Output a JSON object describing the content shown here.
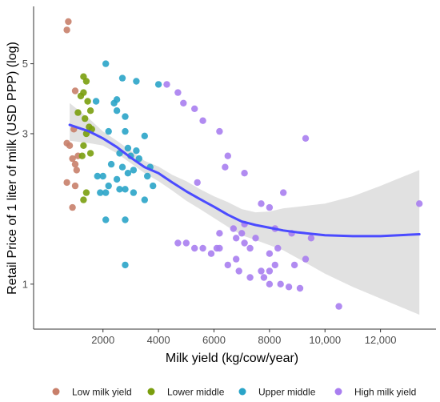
{
  "chart_data": {
    "type": "scatter",
    "xlabel": "Milk yield (kg/cow/year)",
    "ylabel": "Retail Price of 1 liter of milk (USD PPP) (log)",
    "y_scale": "log",
    "xlim": [
      -500,
      14000
    ],
    "ylim": [
      0.72,
      7.6
    ],
    "x_ticks": [
      2000,
      4000,
      6000,
      8000,
      10000,
      12000
    ],
    "x_tick_labels": [
      "2000",
      "4000",
      "6000",
      "8000",
      "10,000",
      "12,000"
    ],
    "y_ticks": [
      1,
      3,
      5
    ],
    "y_tick_labels": [
      "1",
      "3",
      "5"
    ],
    "grid": false,
    "legend_position": "bottom",
    "series": [
      {
        "name": "Low milk yield",
        "color": "#c87f6a",
        "points": [
          [
            700,
            6.4
          ],
          [
            750,
            6.8
          ],
          [
            700,
            2.8
          ],
          [
            800,
            2.75
          ],
          [
            900,
            2.5
          ],
          [
            1000,
            2.4
          ],
          [
            1100,
            2.55
          ],
          [
            1050,
            2.3
          ],
          [
            700,
            2.1
          ],
          [
            1000,
            2.05
          ],
          [
            900,
            1.75
          ],
          [
            950,
            3.1
          ],
          [
            1000,
            4.1
          ]
        ]
      },
      {
        "name": "Lower middle",
        "color": "#7a9e0e",
        "points": [
          [
            1300,
            4.55
          ],
          [
            1400,
            4.4
          ],
          [
            1300,
            4.05
          ],
          [
            1200,
            3.95
          ],
          [
            1450,
            3.8
          ],
          [
            1350,
            3.35
          ],
          [
            1550,
            3.55
          ],
          [
            1100,
            3.5
          ],
          [
            1500,
            3.15
          ],
          [
            1400,
            3.0
          ],
          [
            1600,
            3.1
          ],
          [
            1300,
            2.75
          ],
          [
            1550,
            2.6
          ],
          [
            1250,
            2.55
          ],
          [
            1400,
            1.95
          ],
          [
            1300,
            1.85
          ]
        ]
      },
      {
        "name": "Upper middle",
        "color": "#2aa4c8",
        "points": [
          [
            2100,
            5.0
          ],
          [
            2700,
            4.5
          ],
          [
            3200,
            4.4
          ],
          [
            2500,
            3.85
          ],
          [
            1750,
            3.8
          ],
          [
            2400,
            3.75
          ],
          [
            2500,
            3.55
          ],
          [
            2800,
            3.4
          ],
          [
            2200,
            3.05
          ],
          [
            2800,
            3.05
          ],
          [
            3500,
            2.95
          ],
          [
            2900,
            2.7
          ],
          [
            3200,
            2.65
          ],
          [
            2600,
            2.6
          ],
          [
            3000,
            2.55
          ],
          [
            3300,
            2.5
          ],
          [
            2300,
            2.4
          ],
          [
            2700,
            2.35
          ],
          [
            3100,
            2.3
          ],
          [
            3700,
            2.35
          ],
          [
            2000,
            2.2
          ],
          [
            2500,
            2.15
          ],
          [
            2900,
            2.25
          ],
          [
            3600,
            2.2
          ],
          [
            1800,
            2.2
          ],
          [
            2200,
            2.05
          ],
          [
            2600,
            2.0
          ],
          [
            3100,
            1.95
          ],
          [
            3800,
            2.05
          ],
          [
            1900,
            1.95
          ],
          [
            2100,
            1.95
          ],
          [
            2800,
            2.0
          ],
          [
            3500,
            1.85
          ],
          [
            2100,
            1.6
          ],
          [
            2800,
            1.6
          ],
          [
            2800,
            1.15
          ],
          [
            4000,
            4.3
          ]
        ]
      },
      {
        "name": "High milk yield",
        "color": "#a97ef0",
        "points": [
          [
            4300,
            4.3
          ],
          [
            4700,
            4.05
          ],
          [
            4900,
            3.75
          ],
          [
            5300,
            3.6
          ],
          [
            5600,
            3.3
          ],
          [
            6200,
            3.05
          ],
          [
            6400,
            2.35
          ],
          [
            6500,
            2.55
          ],
          [
            7100,
            2.25
          ],
          [
            5400,
            2.1
          ],
          [
            7700,
            1.8
          ],
          [
            8500,
            1.95
          ],
          [
            6200,
            1.45
          ],
          [
            5300,
            1.3
          ],
          [
            4700,
            1.35
          ],
          [
            5000,
            1.35
          ],
          [
            5600,
            1.3
          ],
          [
            6800,
            1.4
          ],
          [
            7000,
            1.45
          ],
          [
            7500,
            1.4
          ],
          [
            7100,
            1.35
          ],
          [
            6100,
            1.3
          ],
          [
            7300,
            1.3
          ],
          [
            8000,
            1.25
          ],
          [
            8300,
            1.3
          ],
          [
            7700,
            1.1
          ],
          [
            8200,
            1.5
          ],
          [
            8800,
            1.45
          ],
          [
            9500,
            1.4
          ],
          [
            6700,
            1.5
          ],
          [
            7100,
            1.55
          ],
          [
            6200,
            1.3
          ],
          [
            5900,
            1.25
          ],
          [
            6800,
            1.2
          ],
          [
            6500,
            1.15
          ],
          [
            6900,
            1.1
          ],
          [
            7300,
            1.05
          ],
          [
            7800,
            1.05
          ],
          [
            8000,
            1.1
          ],
          [
            8200,
            1.15
          ],
          [
            8900,
            1.15
          ],
          [
            9300,
            1.2
          ],
          [
            8000,
            1.0
          ],
          [
            8400,
            1.0
          ],
          [
            8700,
            0.98
          ],
          [
            9100,
            0.97
          ],
          [
            10500,
            0.85
          ],
          [
            8000,
            1.75
          ],
          [
            13400,
            1.8
          ],
          [
            9300,
            2.9
          ]
        ]
      }
    ],
    "trend": {
      "method": "loess",
      "color": "#4b4bff",
      "band_color": "#d9d9d9",
      "points": [
        [
          800,
          3.2
        ],
        [
          1500,
          3.05
        ],
        [
          2000,
          2.9
        ],
        [
          2500,
          2.72
        ],
        [
          3000,
          2.52
        ],
        [
          3500,
          2.35
        ],
        [
          4000,
          2.25
        ],
        [
          4500,
          2.1
        ],
        [
          5000,
          1.97
        ],
        [
          5500,
          1.86
        ],
        [
          6000,
          1.76
        ],
        [
          6500,
          1.66
        ],
        [
          7000,
          1.58
        ],
        [
          7500,
          1.54
        ],
        [
          8000,
          1.51
        ],
        [
          8500,
          1.48
        ],
        [
          9000,
          1.46
        ],
        [
          10000,
          1.43
        ],
        [
          11000,
          1.42
        ],
        [
          12000,
          1.42
        ],
        [
          13400,
          1.44
        ]
      ],
      "lower": [
        [
          800,
          2.85
        ],
        [
          1500,
          2.8
        ],
        [
          2000,
          2.75
        ],
        [
          2500,
          2.6
        ],
        [
          3000,
          2.42
        ],
        [
          3500,
          2.25
        ],
        [
          4000,
          2.12
        ],
        [
          4500,
          1.98
        ],
        [
          5000,
          1.84
        ],
        [
          5500,
          1.73
        ],
        [
          6000,
          1.62
        ],
        [
          6500,
          1.52
        ],
        [
          7000,
          1.43
        ],
        [
          7500,
          1.38
        ],
        [
          8000,
          1.33
        ],
        [
          8500,
          1.28
        ],
        [
          9000,
          1.21
        ],
        [
          10000,
          1.08
        ],
        [
          11000,
          0.98
        ],
        [
          12000,
          0.9
        ],
        [
          13400,
          0.8
        ]
      ],
      "upper": [
        [
          800,
          3.75
        ],
        [
          1500,
          3.35
        ],
        [
          2000,
          3.05
        ],
        [
          2500,
          2.85
        ],
        [
          3000,
          2.65
        ],
        [
          3500,
          2.46
        ],
        [
          4000,
          2.36
        ],
        [
          4500,
          2.22
        ],
        [
          5000,
          2.12
        ],
        [
          5500,
          2.0
        ],
        [
          6000,
          1.9
        ],
        [
          6500,
          1.82
        ],
        [
          7000,
          1.73
        ],
        [
          7500,
          1.69
        ],
        [
          8000,
          1.7
        ],
        [
          8500,
          1.74
        ],
        [
          9000,
          1.76
        ],
        [
          10000,
          1.8
        ],
        [
          11000,
          1.9
        ],
        [
          12000,
          2.05
        ],
        [
          13400,
          2.3
        ]
      ]
    }
  }
}
